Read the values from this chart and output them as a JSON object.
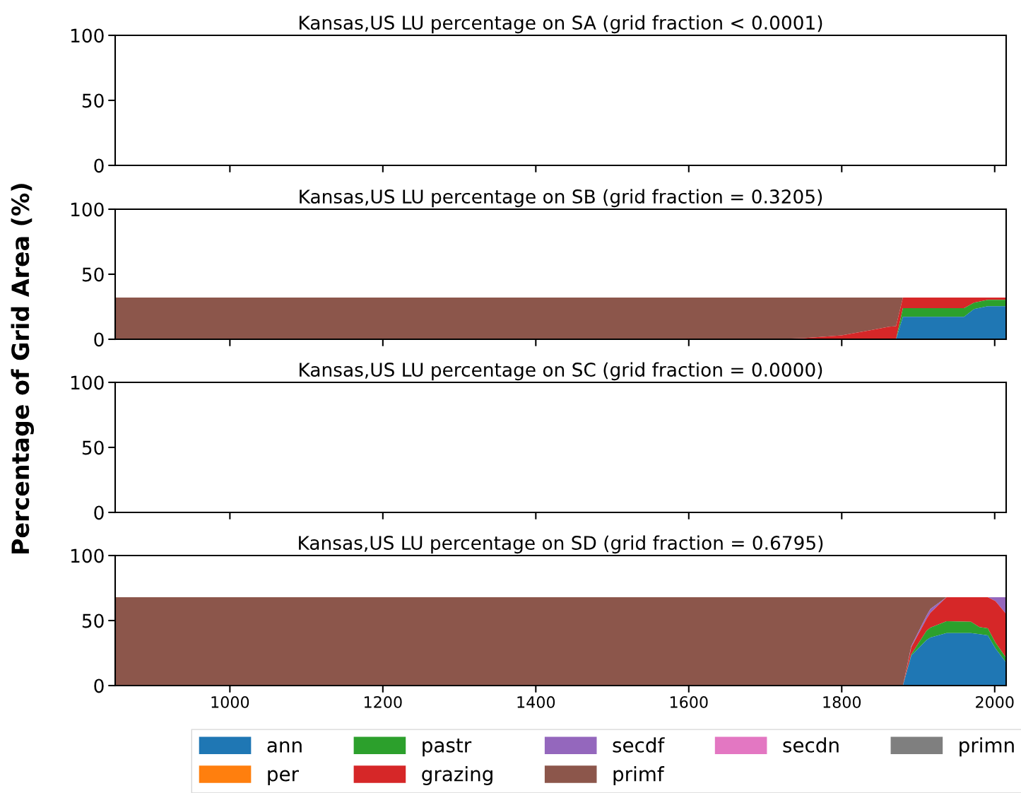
{
  "chart_data": [
    {
      "type": "area",
      "title": "Kansas,US LU percentage on SA (grid fraction < 0.0001)",
      "ylabel": "Percentage of Grid Area (%)",
      "xlim": [
        850,
        2015
      ],
      "xticks": [
        1000,
        1200,
        1400,
        1600,
        1800,
        2000
      ],
      "ylim": [
        0,
        100
      ],
      "yticks": [
        0,
        50,
        100
      ],
      "tick_labels": "y"
    },
    {
      "type": "area",
      "stacked": true,
      "title": "Kansas,US LU percentage on SB (grid fraction = 0.3205)",
      "xlim": [
        850,
        2015
      ],
      "xticks": [
        1000,
        1200,
        1400,
        1600,
        1800,
        2000
      ],
      "ylim": [
        0,
        100
      ],
      "yticks": [
        0,
        50,
        100
      ],
      "tick_labels": "y",
      "x": [
        850,
        1700,
        1750,
        1800,
        1840,
        1862,
        1871,
        1880,
        1960,
        1973,
        1991,
        2015
      ],
      "series": [
        {
          "color": "#1f77b4",
          "values": [
            0,
            0,
            0,
            0,
            0,
            0,
            0,
            17.2,
            17.2,
            23.2,
            25.4,
            25.4
          ]
        },
        {
          "color": "#2ca02c",
          "values": [
            0,
            0,
            0,
            0,
            0,
            0,
            0,
            6.7,
            6.7,
            4.9,
            4.9,
            4.9
          ]
        },
        {
          "color": "#d62728",
          "values": [
            0,
            0,
            0.8,
            3,
            7.2,
            9.6,
            10,
            8.15,
            8.15,
            3.95,
            1.75,
            1.75
          ]
        },
        {
          "color": "#8c564b",
          "values": [
            32.05,
            32.05,
            31.25,
            29.05,
            24.85,
            22.45,
            22.05,
            0,
            null,
            null,
            null,
            null
          ]
        }
      ]
    },
    {
      "type": "area",
      "title": "Kansas,US LU percentage on SC (grid fraction = 0.0000)",
      "xlim": [
        850,
        2015
      ],
      "xticks": [
        1000,
        1200,
        1400,
        1600,
        1800,
        2000
      ],
      "ylim": [
        0,
        100
      ],
      "yticks": [
        0,
        50,
        100
      ],
      "tick_labels": "y"
    },
    {
      "type": "area",
      "stacked": true,
      "title": "Kansas,US LU percentage on SD (grid fraction = 0.6795)",
      "xlim": [
        850,
        2015
      ],
      "xticks": [
        1000,
        1200,
        1400,
        1600,
        1800,
        2000
      ],
      "ylim": [
        0,
        100
      ],
      "yticks": [
        0,
        50,
        100
      ],
      "legend": "bottom",
      "x": [
        850,
        1880,
        1891,
        1911,
        1916,
        1937,
        1969,
        1980,
        1991,
        2001,
        2015
      ],
      "series": [
        {
          "name": "ann",
          "color": "#1f77b4",
          "values": [
            0,
            0,
            23.1,
            35,
            37,
            40.4,
            40.4,
            39.5,
            38.6,
            28.6,
            17.7
          ]
        },
        {
          "name": "per",
          "color": "#ff7f0e",
          "values": [
            null,
            null,
            null,
            null,
            null,
            null,
            null,
            null,
            null,
            null,
            null
          ]
        },
        {
          "name": "pastr",
          "color": "#2ca02c",
          "values": [
            0,
            0,
            0.9,
            7.3,
            7.5,
            9.1,
            8.6,
            5.5,
            5.4,
            4.4,
            3.6
          ]
        },
        {
          "name": "grazing",
          "color": "#d62728",
          "values": [
            0,
            0,
            5.5,
            9.1,
            11.5,
            18.45,
            18.95,
            22.95,
            23.95,
            32,
            33.7
          ]
        },
        {
          "name": "secdf",
          "color": "#9467bd",
          "values": [
            null,
            0,
            1,
            2.6,
            3,
            0,
            null,
            null,
            0,
            2.95,
            12.95
          ]
        },
        {
          "name": "primf",
          "color": "#8c564b",
          "values": [
            67.95,
            67.95,
            37.45,
            13.95,
            8.95,
            0,
            null,
            null,
            null,
            null,
            null
          ]
        },
        {
          "name": "secdn",
          "color": "#e377c2",
          "values": [
            null,
            null,
            null,
            null,
            null,
            null,
            null,
            null,
            null,
            null,
            null
          ]
        },
        {
          "name": "primn",
          "color": "#7f7f7f",
          "values": [
            null,
            null,
            null,
            null,
            null,
            null,
            null,
            null,
            null,
            null,
            null
          ]
        }
      ]
    }
  ]
}
